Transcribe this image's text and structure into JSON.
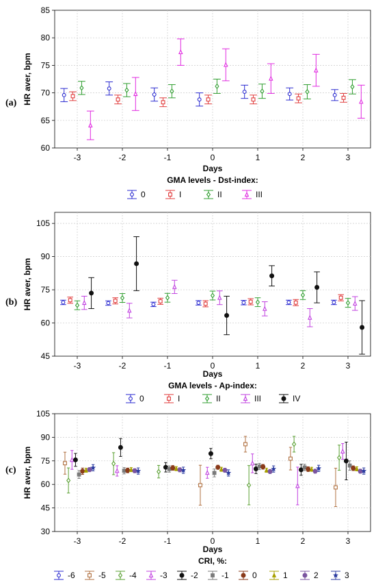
{
  "chart_data": [
    {
      "panel": "(a)",
      "type": "scatter",
      "ylabel": "HR aver, bpm",
      "xlabel": "Days",
      "x": [
        "-3",
        "-2",
        "-1",
        "0",
        "1",
        "2",
        "3"
      ],
      "ylim": [
        60,
        85
      ],
      "yticks": [
        60,
        65,
        70,
        75,
        80,
        85
      ],
      "legend_title": "GMA levels - Dst-index:",
      "series": [
        {
          "name": "0",
          "color": "#2a2ad0",
          "marker": "circle",
          "mean": [
            69.6,
            70.8,
            69.7,
            68.8,
            70.2,
            69.8,
            69.6
          ],
          "err": [
            1.2,
            1.2,
            1.2,
            1.2,
            1.2,
            1.1,
            1.0
          ]
        },
        {
          "name": "I",
          "color": "#e03a3a",
          "marker": "square",
          "mean": [
            69.4,
            68.8,
            68.3,
            68.8,
            68.8,
            69.0,
            69.1
          ],
          "err": [
            0.8,
            0.8,
            0.8,
            0.8,
            0.8,
            0.8,
            0.8
          ]
        },
        {
          "name": "II",
          "color": "#2f9e2f",
          "marker": "diamond",
          "mean": [
            70.9,
            70.5,
            70.3,
            71.2,
            70.3,
            70.2,
            71.1
          ],
          "err": [
            1.2,
            1.2,
            1.2,
            1.3,
            1.3,
            1.3,
            1.3
          ]
        },
        {
          "name": "III",
          "color": "#e028e0",
          "marker": "triangle",
          "mean": [
            64.1,
            69.8,
            77.4,
            75.1,
            72.6,
            74.1,
            68.4
          ],
          "err": [
            2.6,
            3.0,
            2.4,
            2.9,
            2.7,
            2.9,
            3.0
          ]
        }
      ]
    },
    {
      "panel": "(b)",
      "type": "scatter",
      "ylabel": "HR aver, bpm",
      "xlabel": "Days",
      "x": [
        "-3",
        "-2",
        "-1",
        "0",
        "1",
        "2",
        "3"
      ],
      "ylim": [
        45,
        110
      ],
      "yticks": [
        45,
        60,
        75,
        90,
        105
      ],
      "legend_title": "GMA levels - Ap-index:",
      "series": [
        {
          "name": "0",
          "color": "#2a2ad0",
          "marker": "circle",
          "mean": [
            69.3,
            69.0,
            68.4,
            69.1,
            69.2,
            69.3,
            69.3
          ],
          "err": [
            1.0,
            1.0,
            1.0,
            1.0,
            1.0,
            1.0,
            1.0
          ]
        },
        {
          "name": "I",
          "color": "#e03a3a",
          "marker": "square",
          "mean": [
            70.3,
            70.0,
            69.8,
            68.7,
            69.6,
            69.2,
            71.4
          ],
          "err": [
            1.4,
            1.4,
            1.4,
            1.4,
            1.4,
            1.4,
            1.4
          ]
        },
        {
          "name": "II",
          "color": "#2f9e2f",
          "marker": "diamond",
          "mean": [
            68.0,
            71.3,
            71.4,
            72.4,
            69.4,
            72.6,
            69.1
          ],
          "err": [
            2.0,
            2.0,
            2.0,
            2.0,
            2.0,
            2.0,
            2.0
          ]
        },
        {
          "name": "III",
          "color": "#c040e0",
          "marker": "triangle",
          "mean": [
            69.1,
            65.6,
            76.3,
            71.4,
            66.4,
            62.4,
            68.8
          ],
          "err": [
            3.0,
            3.3,
            3.0,
            3.1,
            3.2,
            4.1,
            3.1
          ]
        },
        {
          "name": "IV",
          "color": "#111111",
          "marker": "dot",
          "mean": [
            73.5,
            86.8,
            null,
            63.4,
            81.3,
            76.1,
            58.0
          ],
          "err": [
            7.0,
            12.2,
            0,
            8.7,
            4.6,
            7.0,
            12.1
          ]
        }
      ]
    },
    {
      "panel": "(c)",
      "type": "scatter",
      "ylabel": "HR aver, bpm",
      "xlabel": "Days",
      "x": [
        "-3",
        "-2",
        "-1",
        "0",
        "1",
        "2",
        "3"
      ],
      "ylim": [
        30,
        105
      ],
      "yticks": [
        30,
        45,
        60,
        75,
        90,
        105
      ],
      "legend_title": "CRI, %:",
      "series": [
        {
          "name": "-6",
          "color": "#2a2ad0",
          "marker": "circle",
          "mean": [
            null,
            null,
            null,
            null,
            null,
            null,
            null
          ],
          "err": [
            0,
            0,
            0,
            0,
            0,
            0,
            0
          ]
        },
        {
          "name": "-5",
          "color": "#b07040",
          "marker": "square",
          "mean": [
            73.5,
            null,
            null,
            59.5,
            85.6,
            76.4,
            58.1
          ],
          "err": [
            7.0,
            0,
            0,
            12.7,
            5.0,
            7.2,
            12.2
          ]
        },
        {
          "name": "-4",
          "color": "#5aa032",
          "marker": "diamond",
          "mean": [
            62.5,
            73.2,
            68.1,
            null,
            59.5,
            85.6,
            77.0
          ],
          "err": [
            8.0,
            7.0,
            4.0,
            0,
            12.5,
            5.0,
            8.0
          ]
        },
        {
          "name": "-3",
          "color": "#c040e0",
          "marker": "triangle",
          "mean": [
            75.6,
            68.6,
            null,
            67.4,
            73.4,
            59.0,
            81.0
          ],
          "err": [
            6.0,
            3.3,
            0,
            3.5,
            6.0,
            12.0,
            5.0
          ]
        },
        {
          "name": "-2",
          "color": "#111111",
          "marker": "dot",
          "mean": [
            75.6,
            83.5,
            70.9,
            79.6,
            69.9,
            69.3,
            74.9
          ],
          "err": [
            4.1,
            5.7,
            3.0,
            3.3,
            3.0,
            3.5,
            12.0
          ]
        },
        {
          "name": "-1",
          "color": "#7a7a7a",
          "marker": "square-filled",
          "mean": [
            66.3,
            68.7,
            69.8,
            67.3,
            71.4,
            70.8,
            72.0
          ],
          "err": [
            2.5,
            2.0,
            2.0,
            2.5,
            2.0,
            2.0,
            3.0
          ]
        },
        {
          "name": "0",
          "color": "#8a3a1a",
          "marker": "dot",
          "mean": [
            68.4,
            68.9,
            70.5,
            70.9,
            71.2,
            69.7,
            70.3
          ],
          "err": [
            2.0,
            1.5,
            1.5,
            1.3,
            1.5,
            1.5,
            1.5
          ]
        },
        {
          "name": "1",
          "color": "#a8a000",
          "marker": "triangle-filled",
          "mean": [
            69.0,
            69.4,
            70.0,
            69.6,
            69.0,
            69.6,
            69.9
          ],
          "err": [
            1.3,
            1.3,
            1.3,
            1.3,
            1.3,
            1.3,
            1.3
          ]
        },
        {
          "name": "2",
          "color": "#7b55a0",
          "marker": "dot",
          "mean": [
            69.4,
            68.7,
            69.3,
            69.0,
            68.2,
            68.4,
            68.4
          ],
          "err": [
            1.3,
            1.3,
            1.3,
            1.3,
            1.3,
            1.3,
            1.3
          ]
        },
        {
          "name": "3",
          "color": "#2a3aa0",
          "marker": "star",
          "mean": [
            70.6,
            68.5,
            69.0,
            67.3,
            69.8,
            70.2,
            68.5
          ],
          "err": [
            2.0,
            2.0,
            2.0,
            2.0,
            2.0,
            2.0,
            2.0
          ]
        }
      ]
    }
  ]
}
